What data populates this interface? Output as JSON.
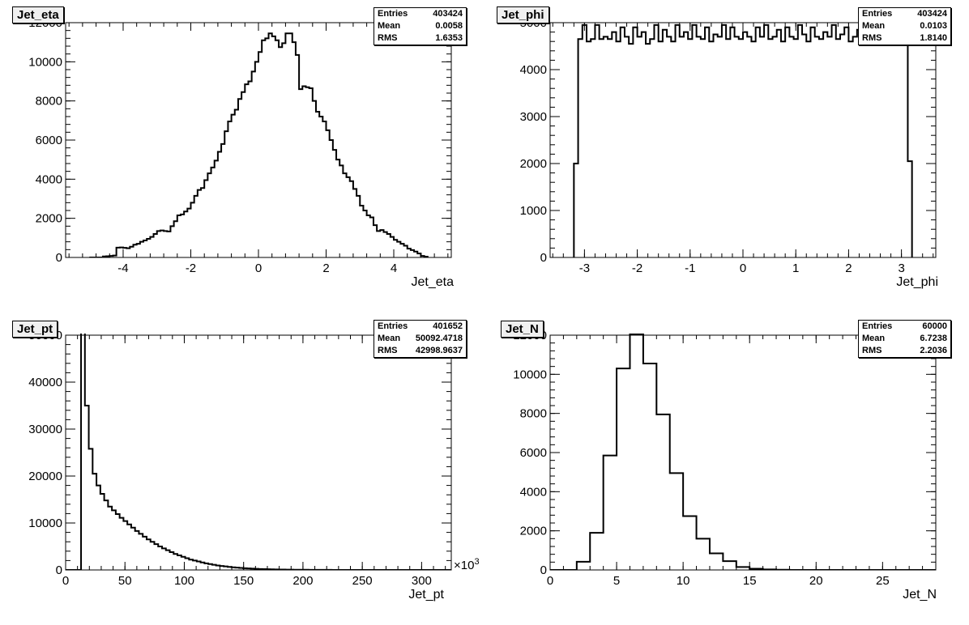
{
  "chart_data": [
    {
      "type": "histogram",
      "title": "Jet_eta",
      "xlabel": "Jet_eta",
      "ylabel": "",
      "xlim": [
        -5.7,
        5.7
      ],
      "ylim": [
        0,
        12000
      ],
      "xticks": [
        -4,
        -2,
        0,
        2,
        4
      ],
      "xtick_labels": [
        "-4",
        "-2",
        "0",
        "2",
        "4"
      ],
      "yticks": [
        0,
        2000,
        4000,
        6000,
        8000,
        10000,
        12000
      ],
      "ytick_labels": [
        "0",
        "2000",
        "4000",
        "6000",
        "8000",
        "10000",
        "12000"
      ],
      "grid": false,
      "stats": {
        "entries_label": "Entries",
        "entries": "403424",
        "mean_label": "Mean",
        "mean": "0.0058",
        "rms_label": "RMS",
        "rms": "1.6353"
      },
      "bin_start": -5.0,
      "bin_width": 0.1,
      "values": [
        0,
        0,
        0,
        0,
        50,
        60,
        80,
        100,
        500,
        510,
        490,
        470,
        550,
        650,
        700,
        800,
        870,
        950,
        1050,
        1200,
        1350,
        1380,
        1350,
        1330,
        1600,
        1850,
        2150,
        2200,
        2350,
        2500,
        2800,
        3150,
        3450,
        3550,
        3950,
        4300,
        4600,
        4950,
        5400,
        5800,
        6450,
        6950,
        7300,
        7550,
        8100,
        8450,
        8850,
        9000,
        9500,
        10000,
        10500,
        11100,
        11200,
        11450,
        11300,
        11100,
        10750,
        10950,
        11450,
        11450,
        11000,
        10350,
        8600,
        8750,
        8700,
        8650,
        8000,
        7450,
        7200,
        6950,
        6500,
        6000,
        5500,
        5000,
        4700,
        4300,
        4100,
        3900,
        3500,
        3150,
        2650,
        2400,
        2150,
        2050,
        1650,
        1350,
        1400,
        1300,
        1200,
        1050,
        900,
        800,
        700,
        600,
        450,
        380,
        300,
        200,
        80,
        40
      ],
      "line_color": "#000000"
    },
    {
      "type": "histogram",
      "title": "Jet_phi",
      "xlabel": "Jet_phi",
      "ylabel": "",
      "xlim": [
        -3.65,
        3.65
      ],
      "ylim": [
        0,
        5000
      ],
      "xticks": [
        -3,
        -2,
        -1,
        0,
        1,
        2,
        3
      ],
      "xtick_labels": [
        "-3",
        "-2",
        "-1",
        "0",
        "1",
        "2",
        "3"
      ],
      "yticks": [
        0,
        1000,
        2000,
        3000,
        4000,
        5000
      ],
      "ytick_labels": [
        "0",
        "1000",
        "2000",
        "3000",
        "4000",
        "5000"
      ],
      "grid": false,
      "stats": {
        "entries_label": "Entries",
        "entries": "403424",
        "mean_label": "Mean",
        "mean": "0.0103",
        "rms_label": "RMS",
        "rms": "1.8140"
      },
      "bin_start": -3.2,
      "bin_width": 0.08,
      "values": [
        2000,
        4650,
        4950,
        4600,
        4650,
        4950,
        4650,
        4700,
        4650,
        4800,
        4600,
        4900,
        4700,
        4550,
        4900,
        4700,
        4800,
        4550,
        4650,
        4950,
        4600,
        4850,
        4700,
        4600,
        4950,
        4700,
        4800,
        4650,
        4950,
        4700,
        4650,
        4900,
        4600,
        4750,
        4700,
        4950,
        4650,
        4900,
        4700,
        4650,
        4800,
        4700,
        4600,
        4900,
        4700,
        4950,
        4650,
        4700,
        4850,
        4600,
        4900,
        4700,
        4650,
        4950,
        4750,
        4600,
        4900,
        4700,
        4650,
        4800,
        4700,
        4950,
        4650,
        4750,
        4900,
        4600,
        4700,
        4850,
        4950,
        4650,
        4700,
        4800,
        4900,
        4650,
        4750,
        4800,
        4900,
        4700,
        4750,
        2050
      ],
      "line_color": "#000000"
    },
    {
      "type": "histogram",
      "title": "Jet_pt",
      "xlabel": "Jet_pt",
      "ylabel": "",
      "x_multiplier": "×10",
      "x_multiplier_exp": "3",
      "xlim": [
        0,
        325
      ],
      "ylim": [
        0,
        50000
      ],
      "xticks": [
        0,
        50,
        100,
        150,
        200,
        250,
        300
      ],
      "xtick_labels": [
        "0",
        "50",
        "100",
        "150",
        "200",
        "250",
        "300"
      ],
      "yticks": [
        0,
        10000,
        20000,
        30000,
        40000,
        50000
      ],
      "ytick_labels": [
        "0",
        "10000",
        "20000",
        "30000",
        "40000",
        "50000"
      ],
      "grid": false,
      "stats": {
        "entries_label": "Entries",
        "entries": "401652",
        "mean_label": "Mean",
        "mean": "50092.4718",
        "rms_label": "RMS",
        "rms": "42998.9637"
      },
      "bin_start": 0,
      "bin_width": 3.25,
      "values": [
        0,
        0,
        0,
        0,
        51000,
        35000,
        25800,
        20500,
        18000,
        16200,
        14800,
        13500,
        12700,
        11900,
        11100,
        10400,
        9700,
        9000,
        8300,
        7700,
        7100,
        6500,
        6000,
        5500,
        5000,
        4600,
        4200,
        3800,
        3400,
        3100,
        2800,
        2500,
        2200,
        2000,
        1800,
        1600,
        1400,
        1250,
        1100,
        950,
        850,
        750,
        650,
        560,
        490,
        430,
        370,
        320,
        270,
        230,
        200,
        170,
        150,
        130,
        110,
        90,
        80,
        70,
        60,
        50,
        45,
        40,
        35,
        30,
        25,
        20,
        18,
        15,
        12,
        10,
        8,
        6,
        5,
        4,
        3,
        2,
        2,
        1,
        1,
        1,
        0,
        0,
        0,
        0,
        0,
        0,
        0,
        0,
        0,
        0,
        0,
        0,
        0,
        0,
        0,
        0,
        0,
        0,
        0,
        0
      ],
      "line_color": "#000000"
    },
    {
      "type": "histogram",
      "title": "Jet_N",
      "xlabel": "Jet_N",
      "ylabel": "",
      "xlim": [
        0,
        29
      ],
      "ylim": [
        0,
        12000
      ],
      "xticks": [
        0,
        5,
        10,
        15,
        20,
        25
      ],
      "xtick_labels": [
        "0",
        "5",
        "10",
        "15",
        "20",
        "25"
      ],
      "yticks": [
        0,
        2000,
        4000,
        6000,
        8000,
        10000,
        12000
      ],
      "ytick_labels": [
        "0",
        "2000",
        "4000",
        "6000",
        "8000",
        "10000",
        "12000"
      ],
      "grid": false,
      "stats": {
        "entries_label": "Entries",
        "entries": "60000",
        "mean_label": "Mean",
        "mean": "6.7238",
        "rms_label": "RMS",
        "rms": "2.2036"
      },
      "bin_start": 0,
      "bin_width": 1,
      "values": [
        0,
        0,
        420,
        1900,
        5850,
        10300,
        12050,
        10550,
        7950,
        4950,
        2750,
        1600,
        850,
        450,
        150,
        60,
        25,
        10,
        0,
        0,
        0,
        0,
        0,
        0,
        0,
        0,
        0,
        0,
        0
      ],
      "line_color": "#000000"
    }
  ]
}
